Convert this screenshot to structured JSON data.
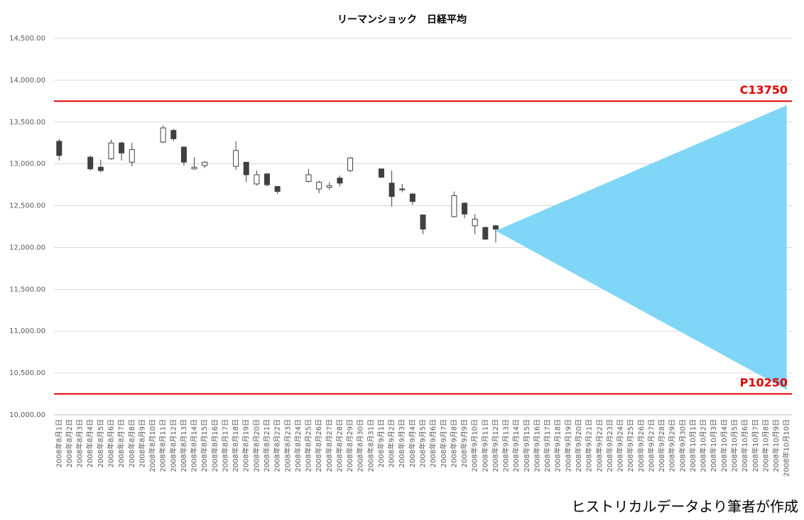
{
  "chart_data": {
    "type": "candlestick",
    "title": "リーマンショック　日経平均",
    "categories": [
      "2008年8月1日",
      "2008年8月2日",
      "2008年8月3日",
      "2008年8月4日",
      "2008年8月5日",
      "2008年8月6日",
      "2008年8月7日",
      "2008年8月8日",
      "2008年8月9日",
      "2008年8月10日",
      "2008年8月11日",
      "2008年8月12日",
      "2008年8月13日",
      "2008年8月14日",
      "2008年8月15日",
      "2008年8月16日",
      "2008年8月17日",
      "2008年8月18日",
      "2008年8月19日",
      "2008年8月20日",
      "2008年8月21日",
      "2008年8月22日",
      "2008年8月23日",
      "2008年8月24日",
      "2008年8月25日",
      "2008年8月26日",
      "2008年8月27日",
      "2008年8月28日",
      "2008年8月29日",
      "2008年8月30日",
      "2008年8月31日",
      "2008年9月1日",
      "2008年9月2日",
      "2008年9月3日",
      "2008年9月4日",
      "2008年9月5日",
      "2008年9月6日",
      "2008年9月7日",
      "2008年9月8日",
      "2008年9月9日",
      "2008年9月10日",
      "2008年9月11日",
      "2008年9月12日",
      "2008年9月13日",
      "2008年9月14日",
      "2008年9月15日",
      "2008年9月16日",
      "2008年9月17日",
      "2008年9月18日",
      "2008年9月19日",
      "2008年9月20日",
      "2008年9月21日",
      "2008年9月22日",
      "2008年9月23日",
      "2008年9月24日",
      "2008年9月25日",
      "2008年9月26日",
      "2008年9月27日",
      "2008年9月28日",
      "2008年9月29日",
      "2008年9月30日",
      "2008年10月1日",
      "2008年10月2日",
      "2008年10月3日",
      "2008年10月4日",
      "2008年10月5日",
      "2008年10月6日",
      "2008年10月7日",
      "2008年10月8日",
      "2008年10月9日",
      "2008年10月10日"
    ],
    "open": [
      13270,
      null,
      null,
      13080,
      12960,
      13060,
      13250,
      13020,
      null,
      null,
      13260,
      13400,
      13200,
      12940,
      12980,
      null,
      null,
      12970,
      13020,
      12760,
      12880,
      12730,
      null,
      null,
      12790,
      12700,
      12720,
      12830,
      12920,
      null,
      null,
      12940,
      12770,
      12700,
      12640,
      12390,
      null,
      null,
      12370,
      12530,
      12260,
      12240,
      12260,
      null,
      null,
      null,
      null,
      null,
      null,
      null,
      null,
      null,
      null,
      null,
      null,
      null,
      null,
      null,
      null,
      null,
      null,
      null,
      null,
      null,
      null,
      null,
      null,
      null,
      null,
      null,
      null
    ],
    "high": [
      13300,
      null,
      null,
      13100,
      13050,
      13290,
      13270,
      13250,
      null,
      null,
      13460,
      13420,
      13210,
      13080,
      13030,
      null,
      null,
      13270,
      13020,
      12920,
      12890,
      12730,
      null,
      null,
      12940,
      12800,
      12780,
      12860,
      13080,
      null,
      null,
      12940,
      12920,
      12760,
      12650,
      12390,
      null,
      null,
      12670,
      12540,
      12400,
      12250,
      12270,
      null,
      null,
      null,
      null,
      null,
      null,
      null,
      null,
      null,
      null,
      null,
      null,
      null,
      null,
      null,
      null,
      null,
      null,
      null,
      null,
      null,
      null,
      null,
      null,
      null,
      null,
      null,
      null
    ],
    "low": [
      13040,
      null,
      null,
      12920,
      12900,
      13050,
      13040,
      12970,
      null,
      null,
      13250,
      13270,
      12980,
      12930,
      12950,
      null,
      null,
      12930,
      12780,
      12740,
      12730,
      12640,
      null,
      null,
      12780,
      12650,
      12690,
      12730,
      12900,
      null,
      null,
      12830,
      12490,
      12660,
      12510,
      12160,
      null,
      null,
      12360,
      12350,
      12160,
      12090,
      12060,
      null,
      null,
      null,
      null,
      null,
      null,
      null,
      null,
      null,
      null,
      null,
      null,
      null,
      null,
      null,
      null,
      null,
      null,
      null,
      null,
      null,
      null,
      null,
      null,
      null,
      null,
      null,
      null
    ],
    "close": [
      13100,
      null,
      null,
      12940,
      12920,
      13250,
      13130,
      13170,
      null,
      null,
      13430,
      13300,
      13020,
      12960,
      13020,
      null,
      null,
      13160,
      12870,
      12870,
      12750,
      12670,
      null,
      null,
      12870,
      12780,
      12740,
      12770,
      13070,
      null,
      null,
      12840,
      12610,
      12690,
      12550,
      12220,
      null,
      null,
      12620,
      12400,
      12340,
      12100,
      12220,
      null,
      null,
      null,
      null,
      null,
      null,
      null,
      null,
      null,
      null,
      null,
      null,
      null,
      null,
      null,
      null,
      null,
      null,
      null,
      null,
      null,
      null,
      null,
      null,
      null,
      null,
      null,
      null
    ],
    "up_color": "#ffffff",
    "down_color": "#404040",
    "band": {
      "color": "#7fd6f7",
      "upper": [
        null,
        null,
        null,
        null,
        null,
        null,
        null,
        null,
        null,
        null,
        null,
        null,
        null,
        null,
        null,
        null,
        null,
        null,
        null,
        null,
        null,
        null,
        null,
        null,
        null,
        null,
        null,
        null,
        null,
        null,
        null,
        null,
        null,
        null,
        null,
        null,
        null,
        null,
        null,
        null,
        null,
        null,
        12200,
        null,
        null,
        null,
        null,
        null,
        null,
        null,
        null,
        null,
        null,
        null,
        null,
        null,
        null,
        null,
        null,
        null,
        null,
        null,
        null,
        null,
        null,
        null,
        null,
        null,
        null,
        null,
        13700
      ],
      "lower": [
        null,
        null,
        null,
        null,
        null,
        null,
        null,
        null,
        null,
        null,
        null,
        null,
        null,
        null,
        null,
        null,
        null,
        null,
        null,
        null,
        null,
        null,
        null,
        null,
        null,
        null,
        null,
        null,
        null,
        null,
        null,
        null,
        null,
        null,
        null,
        null,
        null,
        null,
        null,
        null,
        null,
        null,
        12200,
        null,
        null,
        null,
        null,
        null,
        null,
        null,
        null,
        null,
        null,
        null,
        null,
        null,
        null,
        null,
        null,
        null,
        null,
        null,
        null,
        null,
        null,
        null,
        null,
        null,
        null,
        null,
        10300
      ]
    },
    "hlines": [
      {
        "value": 13750,
        "label": "C13750",
        "color": "#e00000"
      },
      {
        "value": 10250,
        "label": "P10250",
        "color": "#e00000"
      }
    ],
    "ylim": [
      10000,
      14500
    ],
    "yticks": [
      {
        "value": 10000,
        "label": "10,000.00"
      },
      {
        "value": 10500,
        "label": "10,500.00"
      },
      {
        "value": 11000,
        "label": "11,000.00"
      },
      {
        "value": 11500,
        "label": "11,500.00"
      },
      {
        "value": 12000,
        "label": "12,000.00"
      },
      {
        "value": 12500,
        "label": "12,500.00"
      },
      {
        "value": 13000,
        "label": "13,000.00"
      },
      {
        "value": 13500,
        "label": "13,500.00"
      },
      {
        "value": 14000,
        "label": "14,000.00"
      },
      {
        "value": 14500,
        "label": "14,500.00"
      }
    ],
    "grid": true
  },
  "note": "ヒストリカルデータより筆者が作成"
}
